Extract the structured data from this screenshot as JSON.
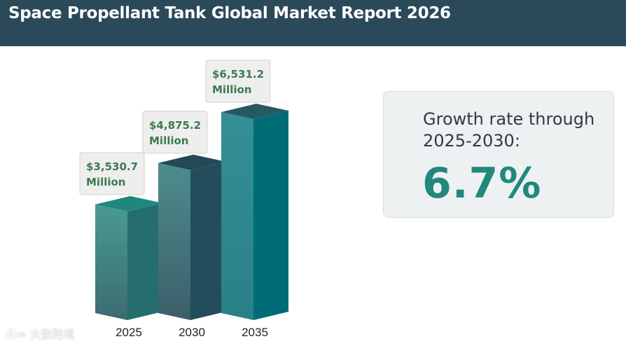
{
  "header": {
    "title": "Space Propellant Tank Global Market Report 2026"
  },
  "chart_data": {
    "type": "bar",
    "title": "Space Propellant Tank Global Market Report 2026",
    "categories": [
      "2025",
      "2030",
      "2035"
    ],
    "values": [
      3530.7,
      4875.2,
      6531.2
    ],
    "value_labels": [
      [
        "$3,530.7",
        "Million"
      ],
      [
        "$4,875.2",
        "Million"
      ],
      [
        "$6,531.2",
        "Million"
      ]
    ],
    "unit": "$ Million",
    "xlabel": "",
    "ylabel": "",
    "ylim": [
      0,
      6531.2
    ],
    "grid": false,
    "style": "3d-columns",
    "colors": {
      "front_top": [
        "#4a9a92",
        "#4d8c8d",
        "#348f95"
      ],
      "front_bottom": [
        "#3b6b72",
        "#3c5f6a",
        "#2a8087"
      ],
      "side": [
        "#266d6d",
        "#234d5b",
        "#006d76"
      ],
      "top": [
        "#1f877e",
        "#234957",
        "#265a63"
      ],
      "label_text": "#3b7a50"
    }
  },
  "growth": {
    "label_line1": "Growth rate through",
    "label_line2": "2025-2030:",
    "value": "6.7%",
    "value_color": "#22877c"
  },
  "watermark": {
    "text": "大数跨境",
    "icon": "kl-logo-icon"
  }
}
